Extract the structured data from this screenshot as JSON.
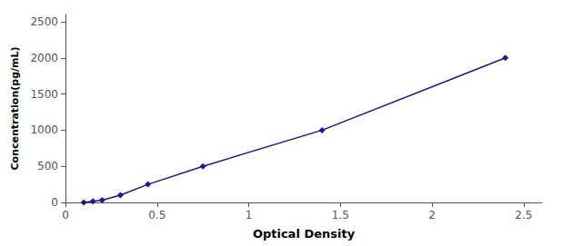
{
  "chart_data": {
    "type": "line",
    "x": [
      0.1,
      0.15,
      0.2,
      0.3,
      0.45,
      0.75,
      1.4,
      2.4
    ],
    "values": [
      0,
      15,
      31,
      100,
      250,
      500,
      1000,
      2000
    ],
    "color": "#1a1a8c",
    "marker": "diamond",
    "xlabel": "Optical Density",
    "ylabel": "Concentration(pg/mL)",
    "xlim": [
      0,
      2.6
    ],
    "ylim": [
      0,
      2600
    ],
    "xticks": [
      0,
      0.5,
      1,
      1.5,
      2,
      2.5
    ],
    "yticks": [
      0,
      500,
      1000,
      1500,
      2000,
      2500
    ],
    "grid": false
  }
}
